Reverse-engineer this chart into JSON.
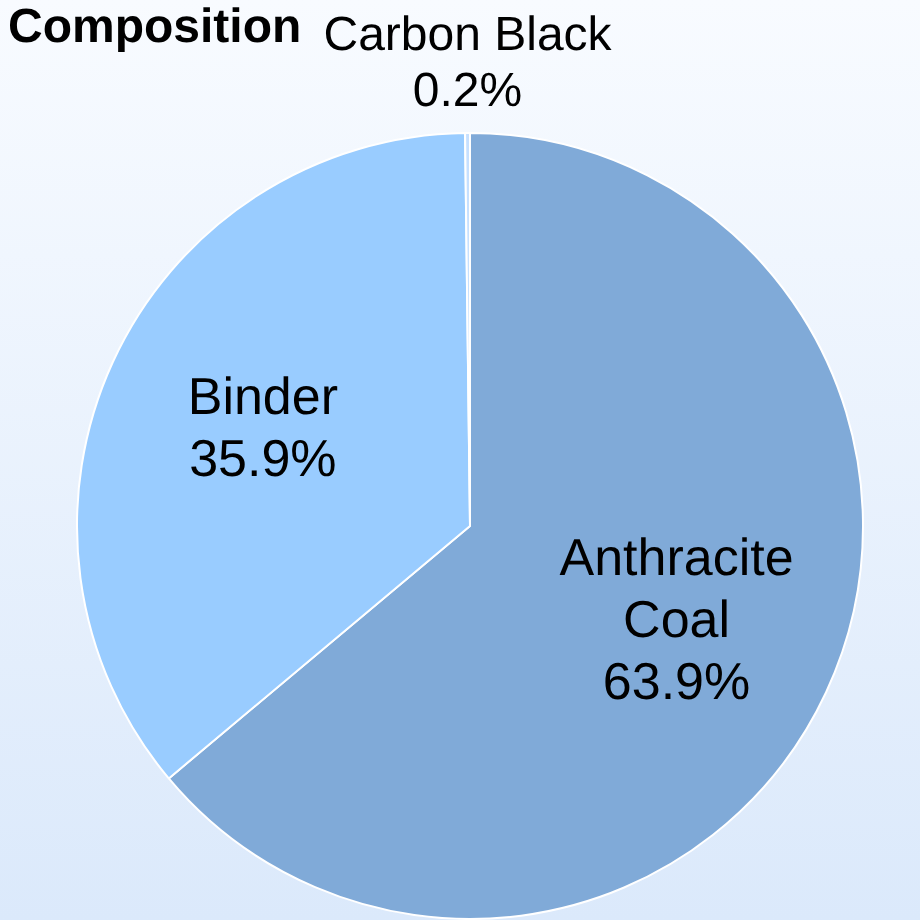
{
  "chart_data": {
    "type": "pie",
    "title": "Composition",
    "categories": [
      "Anthracite Coal",
      "Binder",
      "Carbon Black"
    ],
    "values": [
      63.9,
      35.9,
      0.2
    ],
    "value_labels": [
      "63.9%",
      "35.9%",
      "0.2%"
    ],
    "colors": [
      "#80aad8",
      "#99ccff",
      "#c6e0ff"
    ],
    "legend": false
  }
}
